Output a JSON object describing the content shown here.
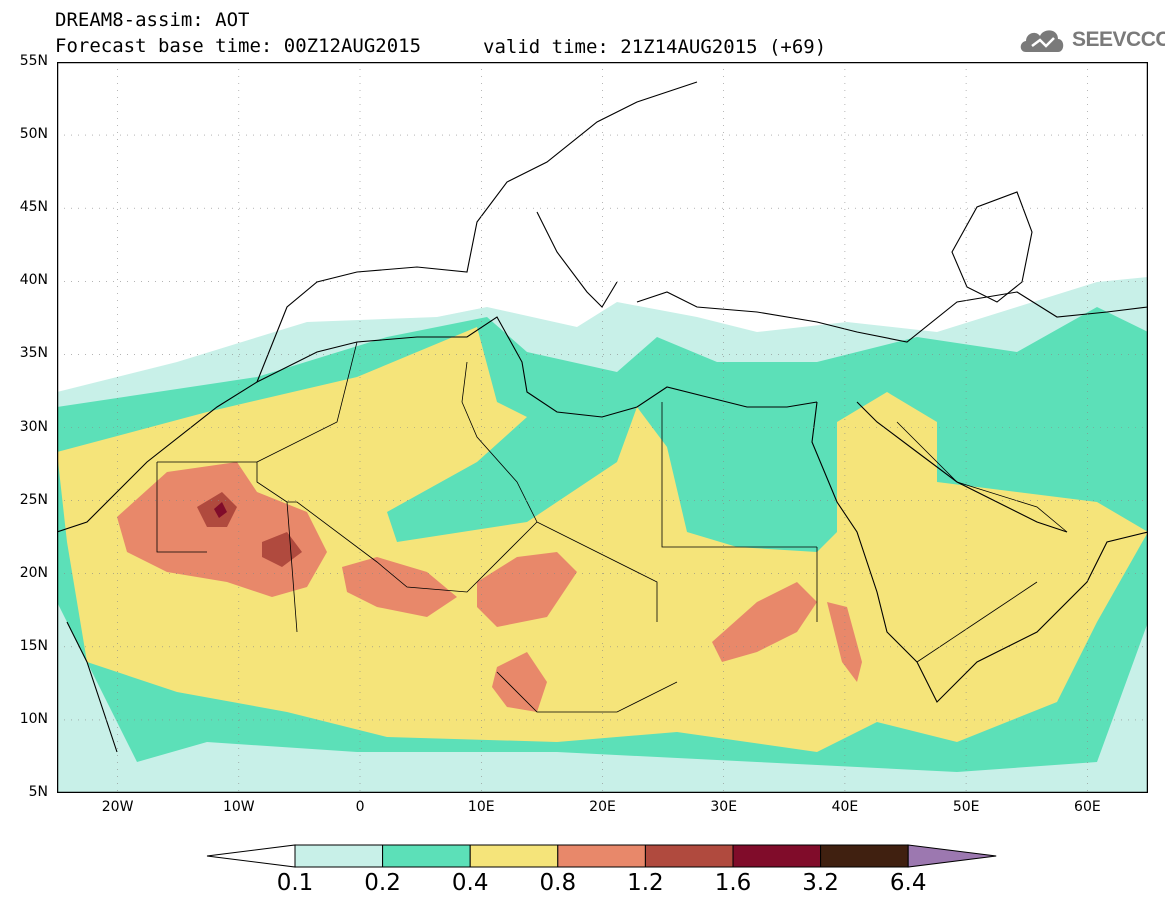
{
  "header": {
    "title": "DREAM8-assim: AOT",
    "base_time": "Forecast base time: 00Z12AUG2015",
    "valid_time": "valid time: 21Z14AUG2015 (+69)"
  },
  "logo": {
    "text": "SEEVCCC"
  },
  "map": {
    "lat_labels": [
      "55N",
      "50N",
      "45N",
      "40N",
      "35N",
      "30N",
      "25N",
      "20N",
      "15N",
      "10N",
      "5N"
    ],
    "lon_labels": [
      "20W",
      "10W",
      "0",
      "10E",
      "20E",
      "30E",
      "40E",
      "50E",
      "60E"
    ],
    "lon_range": [
      -25,
      65
    ],
    "lat_range": [
      5,
      55
    ]
  },
  "legend": {
    "levels": [
      "0.1",
      "0.2",
      "0.4",
      "0.8",
      "1.2",
      "1.6",
      "3.2",
      "6.4"
    ],
    "colors": [
      "#c8f0e8",
      "#5ce0b8",
      "#f5e47a",
      "#e8886a",
      "#b04a3e",
      "#800c2a",
      "#402010",
      "#9c78b0"
    ]
  }
}
